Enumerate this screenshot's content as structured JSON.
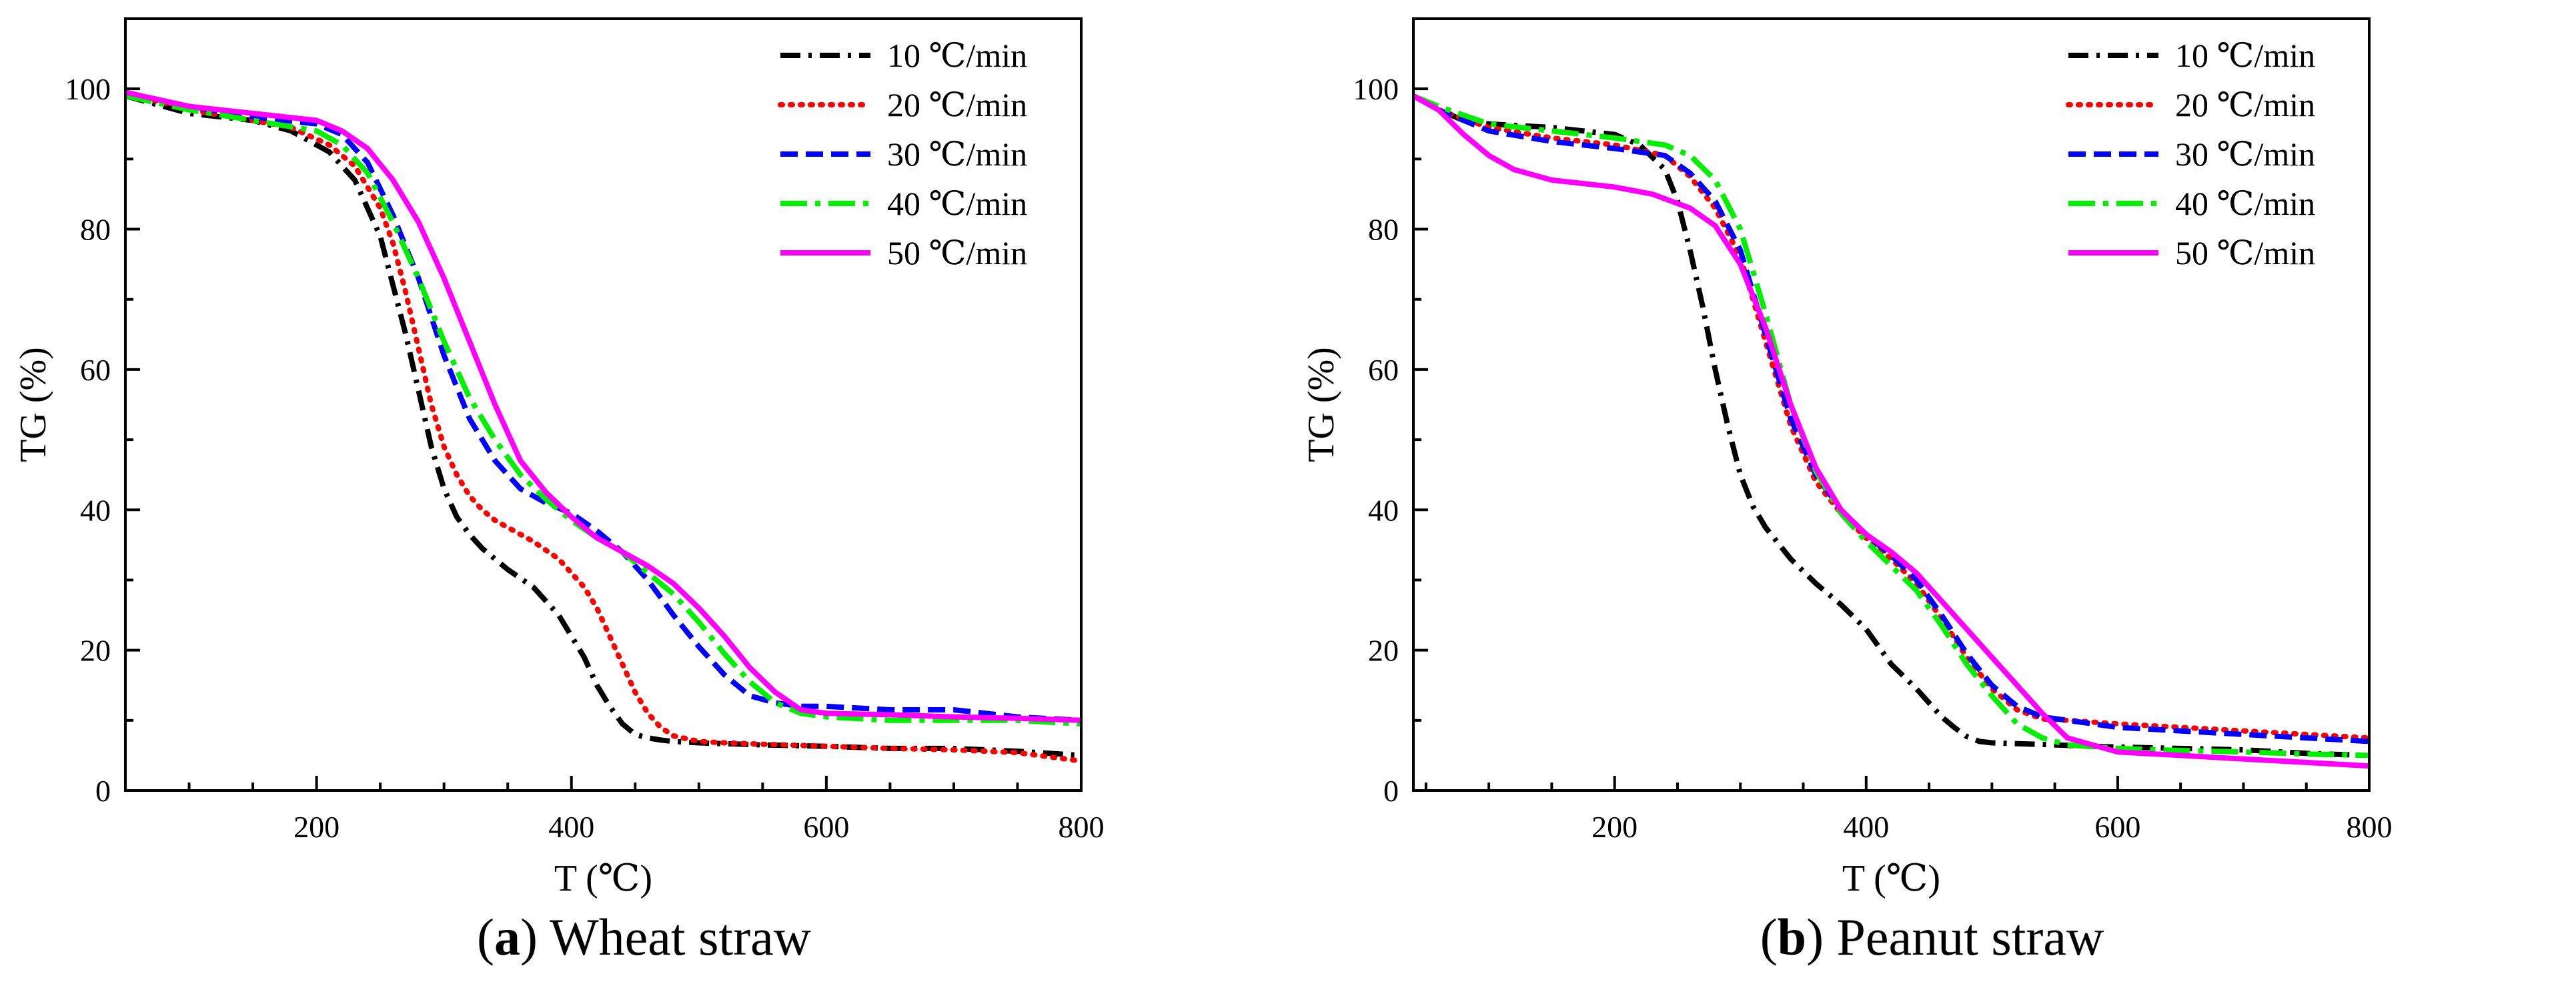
{
  "chart_data": [
    {
      "type": "line",
      "panel_letter": "a",
      "caption": "Wheat straw",
      "xlabel": "T (℃)",
      "ylabel": "TG (%)",
      "xlim": [
        50,
        800
      ],
      "ylim": [
        0,
        110
      ],
      "xticks": [
        200,
        400,
        600,
        800
      ],
      "yticks": [
        0,
        20,
        40,
        60,
        80,
        100
      ],
      "legend_position": "top-right",
      "series": [
        {
          "name": "10 ℃/min",
          "color": "#000000",
          "dash": "dashdot",
          "x": [
            50,
            100,
            150,
            180,
            210,
            230,
            250,
            260,
            270,
            280,
            290,
            300,
            310,
            320,
            330,
            340,
            350,
            370,
            390,
            410,
            420,
            430,
            440,
            450,
            460,
            470,
            480,
            500,
            550,
            600,
            650,
            700,
            750,
            800
          ],
          "y": [
            99,
            96.5,
            95.5,
            94,
            91,
            87,
            79,
            72,
            65,
            57,
            49,
            43,
            39,
            36.5,
            34.5,
            33,
            31.5,
            29,
            25,
            19,
            15,
            12,
            9.5,
            8,
            7.5,
            7.2,
            7,
            6.8,
            6.5,
            6.3,
            6,
            6,
            5.6,
            5
          ]
        },
        {
          "name": "20 ℃/min",
          "color": "#ff0000",
          "dash": "dot",
          "x": [
            50,
            100,
            150,
            180,
            210,
            230,
            250,
            260,
            270,
            280,
            290,
            300,
            310,
            320,
            330,
            340,
            350,
            370,
            390,
            410,
            420,
            430,
            440,
            450,
            460,
            470,
            480,
            500,
            520,
            550,
            600,
            650,
            700,
            750,
            800
          ],
          "y": [
            99.5,
            97,
            95.5,
            94.5,
            92,
            89,
            83,
            78,
            71,
            63,
            55,
            49,
            45,
            42,
            40,
            38.5,
            37.5,
            35.5,
            33,
            29,
            26,
            22,
            18,
            14,
            11,
            9,
            7.8,
            7,
            6.8,
            6.6,
            6.3,
            6,
            5.8,
            5.4,
            4.2
          ]
        },
        {
          "name": "30 ℃/min",
          "color": "#0000ff",
          "dash": "dash",
          "x": [
            50,
            100,
            150,
            200,
            220,
            240,
            260,
            280,
            300,
            320,
            340,
            360,
            380,
            400,
            420,
            440,
            460,
            480,
            500,
            520,
            540,
            560,
            580,
            600,
            650,
            700,
            750,
            800
          ],
          "y": [
            99.5,
            97.5,
            96,
            95,
            93.5,
            89.5,
            82,
            73,
            62,
            53,
            47,
            43,
            41,
            39.5,
            37,
            34,
            30,
            25,
            20.5,
            16.5,
            13.5,
            12.5,
            12,
            12,
            11.5,
            11.5,
            10.5,
            10
          ]
        },
        {
          "name": "40 ℃/min",
          "color": "#00ee00",
          "dash": "longdashdot",
          "x": [
            50,
            100,
            150,
            200,
            220,
            240,
            260,
            280,
            300,
            320,
            340,
            360,
            380,
            400,
            420,
            440,
            460,
            480,
            500,
            520,
            540,
            560,
            580,
            600,
            650,
            700,
            750,
            800
          ],
          "y": [
            99,
            97,
            95.5,
            94,
            92,
            88,
            81,
            73,
            64,
            56,
            50,
            45,
            41.5,
            38.5,
            36,
            34,
            31,
            28,
            24,
            19.5,
            15.5,
            12.5,
            11,
            10.5,
            10,
            10,
            10,
            9.5
          ]
        },
        {
          "name": "50 ℃/min",
          "color": "#ff00ff",
          "dash": "solid",
          "x": [
            50,
            100,
            150,
            200,
            220,
            240,
            260,
            280,
            300,
            320,
            340,
            360,
            380,
            400,
            420,
            440,
            460,
            480,
            500,
            520,
            540,
            560,
            580,
            600,
            650,
            700,
            750,
            800
          ],
          "y": [
            99.5,
            97.5,
            96.5,
            95.5,
            94,
            91.5,
            87,
            81,
            73,
            64,
            55,
            47,
            42.5,
            39,
            36,
            34,
            32,
            29.5,
            26,
            22,
            17.5,
            14,
            11.5,
            11,
            10.8,
            10.5,
            10.3,
            10
          ]
        }
      ]
    },
    {
      "type": "line",
      "panel_letter": "b",
      "caption": "Peanut straw",
      "xlabel": "T (℃)",
      "ylabel": "TG (%)",
      "xlim": [
        40,
        800
      ],
      "ylim": [
        0,
        110
      ],
      "xticks": [
        200,
        400,
        600,
        800
      ],
      "yticks": [
        0,
        20,
        40,
        60,
        80,
        100
      ],
      "legend_position": "top-right",
      "series": [
        {
          "name": "10 ℃/min",
          "color": "#000000",
          "dash": "dashdot",
          "x": [
            40,
            60,
            80,
            100,
            150,
            200,
            220,
            240,
            250,
            260,
            270,
            280,
            290,
            300,
            310,
            320,
            340,
            360,
            380,
            400,
            420,
            440,
            460,
            470,
            480,
            490,
            500,
            550,
            600,
            650,
            700,
            750,
            800
          ],
          "y": [
            99,
            97,
            95.5,
            95,
            94.5,
            93.5,
            92,
            88.5,
            84,
            77,
            69,
            60,
            52,
            45,
            40.5,
            37.5,
            33,
            29.5,
            26.5,
            23,
            18,
            14.5,
            10.5,
            9,
            7.7,
            7,
            6.8,
            6.5,
            6.2,
            6,
            5.8,
            5.3,
            5
          ]
        },
        {
          "name": "20 ℃/min",
          "color": "#ff0000",
          "dash": "dot",
          "x": [
            40,
            60,
            100,
            150,
            200,
            240,
            260,
            280,
            300,
            320,
            340,
            360,
            380,
            400,
            420,
            440,
            460,
            480,
            500,
            520,
            540,
            560,
            600,
            650,
            700,
            750,
            800
          ],
          "y": [
            99,
            97,
            94.5,
            93,
            92,
            90.5,
            87.5,
            83,
            76,
            64,
            52,
            44,
            39.5,
            36,
            33,
            29.5,
            24.5,
            19,
            14.5,
            11.5,
            10.2,
            10,
            9.5,
            9,
            8.5,
            8,
            7.5
          ]
        },
        {
          "name": "30 ℃/min",
          "color": "#0000ff",
          "dash": "dash",
          "x": [
            40,
            60,
            100,
            150,
            200,
            240,
            260,
            280,
            300,
            320,
            340,
            360,
            380,
            400,
            420,
            440,
            460,
            480,
            500,
            520,
            540,
            560,
            600,
            650,
            700,
            750,
            800
          ],
          "y": [
            99,
            97,
            94,
            92.5,
            91.5,
            90.5,
            88,
            84,
            77,
            65,
            53,
            45,
            40,
            36.5,
            33.5,
            30,
            25,
            19.5,
            15,
            12,
            10.5,
            10,
            9,
            8.5,
            8,
            7.5,
            7
          ]
        },
        {
          "name": "40 ℃/min",
          "color": "#00ee00",
          "dash": "longdashdot",
          "x": [
            40,
            60,
            100,
            150,
            200,
            240,
            260,
            280,
            300,
            320,
            340,
            360,
            380,
            400,
            420,
            440,
            460,
            480,
            500,
            520,
            540,
            560,
            600,
            650,
            700,
            750,
            800
          ],
          "y": [
            99,
            97.5,
            95,
            94,
            93,
            92,
            90.5,
            87,
            80,
            68,
            55,
            45.5,
            39.5,
            35.5,
            32,
            28.5,
            23.5,
            18,
            13.5,
            9.5,
            7.5,
            6.5,
            6,
            5.7,
            5.5,
            5.2,
            5
          ]
        },
        {
          "name": "50 ℃/min",
          "color": "#ff00ff",
          "dash": "solid",
          "x": [
            40,
            60,
            80,
            100,
            120,
            150,
            200,
            230,
            260,
            280,
            300,
            320,
            340,
            360,
            380,
            400,
            420,
            440,
            460,
            480,
            500,
            520,
            540,
            560,
            600,
            650,
            700,
            750,
            800
          ],
          "y": [
            99,
            97,
            93.5,
            90.5,
            88.5,
            87,
            86,
            85,
            83,
            80.5,
            75,
            66,
            55,
            46,
            40,
            36.5,
            34,
            31,
            27,
            23,
            19,
            15,
            11,
            7.5,
            5.5,
            5,
            4.5,
            4,
            3.5
          ]
        }
      ]
    }
  ]
}
